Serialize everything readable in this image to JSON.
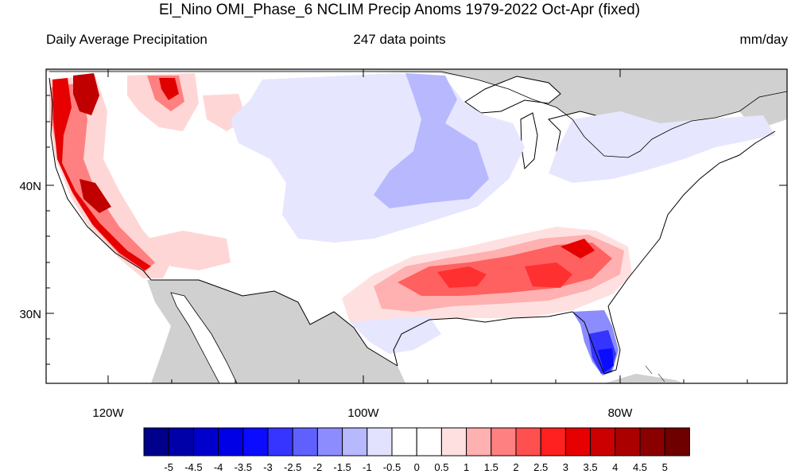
{
  "header": {
    "title": "El_Nino OMI_Phase_6 NCLIM Precip Anoms 1979-2022 Oct-Apr (fixed)",
    "left_label": "Daily Average Precipitation",
    "center_label": "247 data points",
    "right_label": "mm/day"
  },
  "axes": {
    "lat_labels": [
      "40N",
      "30N"
    ],
    "lon_labels": [
      "120W",
      "100W",
      "80W"
    ]
  },
  "colorbar": {
    "labels": [
      "-5",
      "-4.5",
      "-4",
      "-3.5",
      "-3",
      "-2.5",
      "-2",
      "-1.5",
      "-1",
      "-0.5",
      "0",
      "0.5",
      "1",
      "1.5",
      "2",
      "2.5",
      "3",
      "3.5",
      "4",
      "4.5",
      "5"
    ],
    "colors": [
      "#00008a",
      "#0000a8",
      "#0000cc",
      "#0000e6",
      "#0b0bff",
      "#3535ff",
      "#6060ff",
      "#8c8cff",
      "#b8b8ff",
      "#e2e2ff",
      "#ffffff",
      "#ffffff",
      "#ffe0e0",
      "#ffb0b0",
      "#ff8080",
      "#ff5050",
      "#ff2020",
      "#e60000",
      "#cc0000",
      "#aa0000",
      "#8a0000",
      "#6e0000"
    ]
  },
  "colors": {
    "land_outside": "#d0d0d0",
    "coast": "#000000"
  }
}
